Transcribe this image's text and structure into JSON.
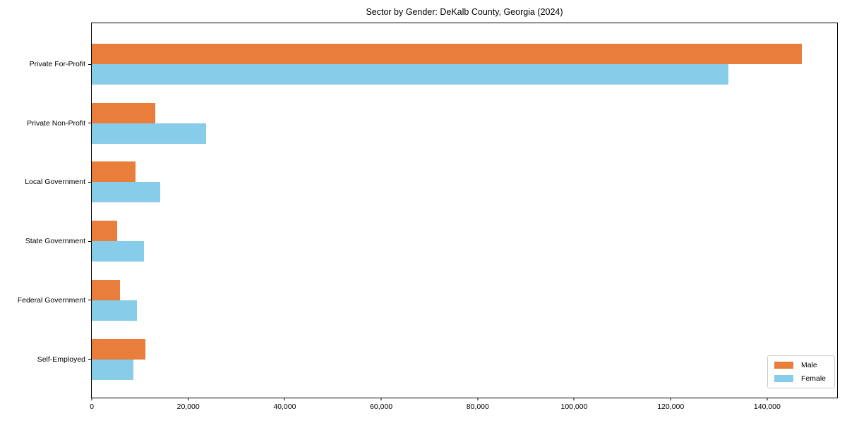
{
  "chart_data": {
    "type": "bar",
    "orientation": "horizontal",
    "title": "Sector by Gender: DeKalb County, Georgia (2024)",
    "categories": [
      "Private For-Profit",
      "Private Non-Profit",
      "Local Government",
      "State Government",
      "Federal Government",
      "Self-Employed"
    ],
    "series": [
      {
        "name": "Male",
        "color": "#e87d3c",
        "values": [
          147200,
          13200,
          9100,
          5200,
          5800,
          11100
        ]
      },
      {
        "name": "Female",
        "color": "#87cde9",
        "values": [
          131900,
          23700,
          14200,
          10800,
          9400,
          8600
        ]
      }
    ],
    "xlabel": "",
    "ylabel": "",
    "xlim": [
      0,
      154500
    ],
    "x_ticks": [
      0,
      20000,
      40000,
      60000,
      80000,
      100000,
      120000,
      140000
    ],
    "x_tick_labels": [
      "0",
      "20,000",
      "40,000",
      "60,000",
      "80,000",
      "100,000",
      "120,000",
      "140,000"
    ],
    "grid": false,
    "legend_position": "lower right",
    "bar_color_male": "#e87d3c",
    "bar_color_female": "#87cde9",
    "spine_color": "#000000"
  },
  "legend": {
    "items": [
      {
        "label": "Male",
        "color": "#e87d3c"
      },
      {
        "label": "Female",
        "color": "#87cde9"
      }
    ]
  }
}
